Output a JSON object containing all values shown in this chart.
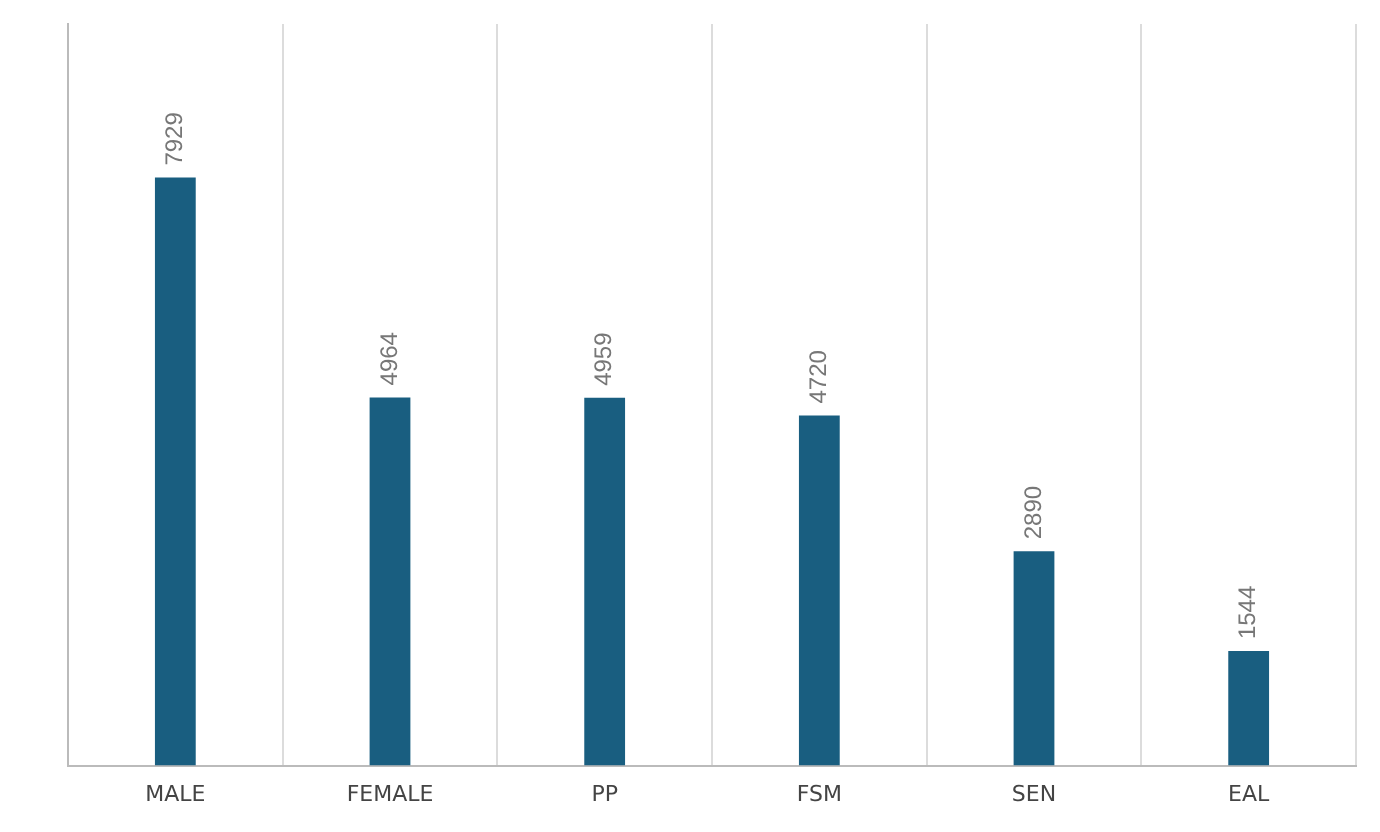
{
  "chart_data": {
    "type": "bar",
    "categories": [
      "MALE",
      "FEMALE",
      "PP",
      "FSM",
      "SEN",
      "EAL"
    ],
    "values": [
      7929,
      4964,
      4959,
      4720,
      2890,
      1544
    ],
    "color": "#195e80",
    "data_labels": true,
    "grid": "x",
    "tick_labels": "x"
  }
}
